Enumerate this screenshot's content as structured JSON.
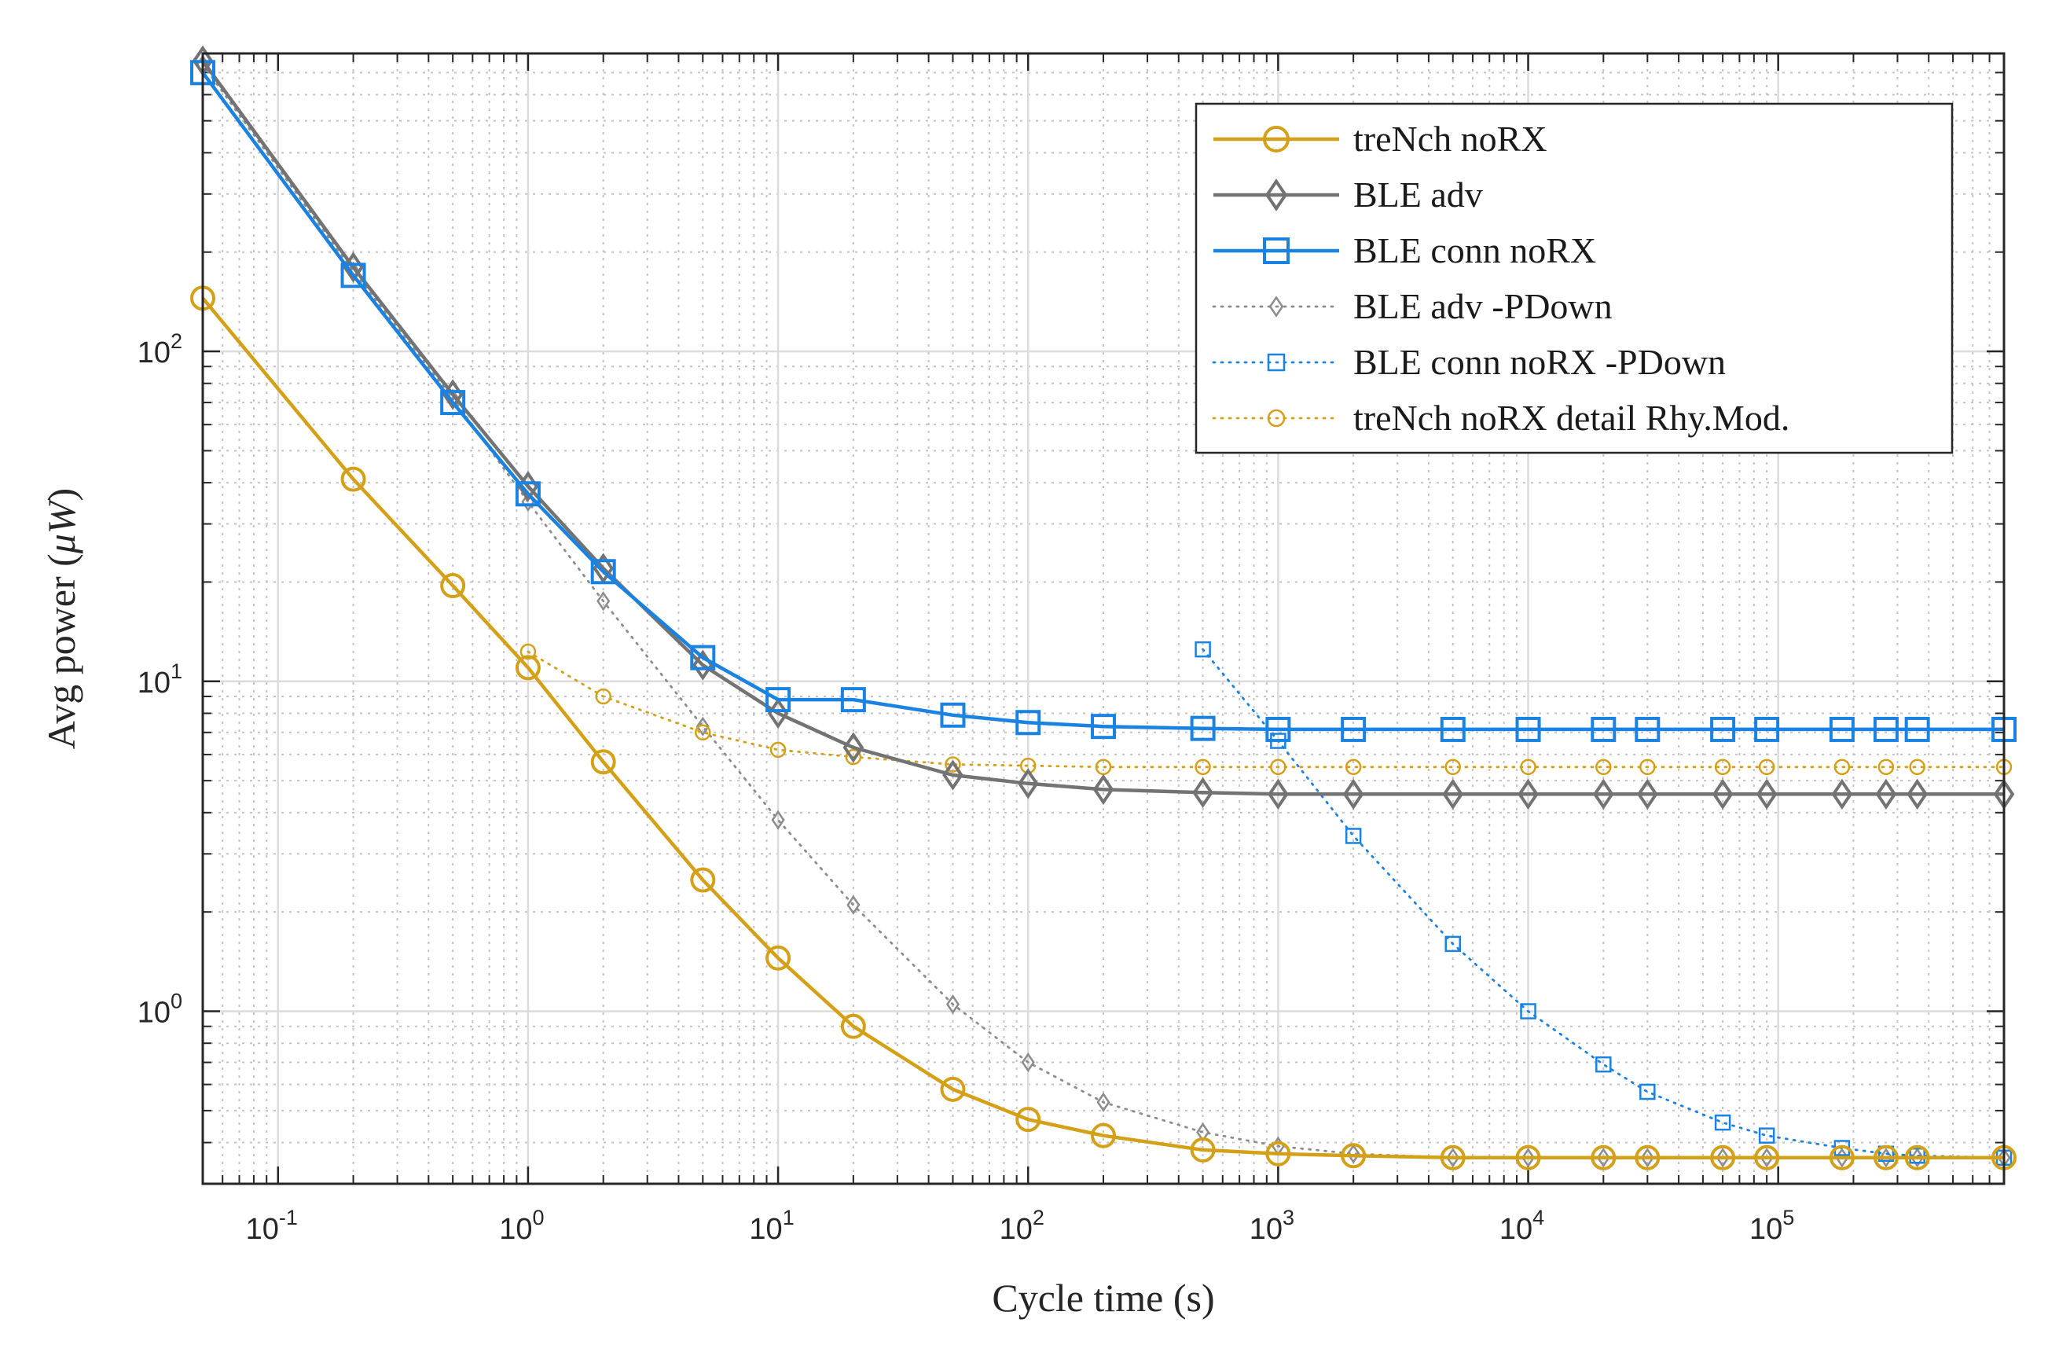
{
  "chart_data": {
    "type": "line",
    "title": "",
    "xlabel": "Cycle time (s)",
    "ylabel": "Avg power (",
    "ylabel_unit": "μW",
    "ylabel_close": ")",
    "xscale": "log",
    "yscale": "log",
    "xlim": [
      0.05,
      800000
    ],
    "ylim": [
      0.3,
      800
    ],
    "grid": true,
    "minor_grid": true,
    "legend_position": "top-right",
    "x_ticks": [
      {
        "base": "10",
        "exp": "-1",
        "value": 0.1
      },
      {
        "base": "10",
        "exp": "0",
        "value": 1
      },
      {
        "base": "10",
        "exp": "1",
        "value": 10
      },
      {
        "base": "10",
        "exp": "2",
        "value": 100
      },
      {
        "base": "10",
        "exp": "3",
        "value": 1000
      },
      {
        "base": "10",
        "exp": "4",
        "value": 10000
      },
      {
        "base": "10",
        "exp": "5",
        "value": 100000
      }
    ],
    "y_ticks": [
      {
        "base": "10",
        "exp": "0",
        "value": 1
      },
      {
        "base": "10",
        "exp": "1",
        "value": 10
      },
      {
        "base": "10",
        "exp": "2",
        "value": 100
      }
    ],
    "series": [
      {
        "name": "treNch noRX",
        "color": "#D4A017",
        "line": "solid",
        "marker": "circle",
        "x": [
          0.05,
          0.2,
          0.5,
          1,
          2,
          5,
          10,
          20,
          50,
          100,
          200,
          500,
          1000,
          2000,
          5000,
          10000,
          20000,
          30000,
          60000,
          90000,
          180000,
          270000,
          360000,
          800000
        ],
        "y": [
          145,
          41,
          19.5,
          11,
          5.7,
          2.5,
          1.45,
          0.9,
          0.58,
          0.47,
          0.42,
          0.38,
          0.37,
          0.365,
          0.36,
          0.36,
          0.36,
          0.36,
          0.36,
          0.36,
          0.36,
          0.36,
          0.36,
          0.36
        ]
      },
      {
        "name": "BLE adv",
        "color": "#737373",
        "line": "solid",
        "marker": "diamond",
        "x": [
          0.05,
          0.2,
          0.5,
          1,
          2,
          5,
          10,
          20,
          50,
          100,
          200,
          500,
          1000,
          2000,
          5000,
          10000,
          20000,
          30000,
          60000,
          90000,
          180000,
          270000,
          360000,
          800000
        ],
        "y": [
          760,
          180,
          74,
          39,
          22,
          11.2,
          8,
          6.3,
          5.2,
          4.9,
          4.7,
          4.6,
          4.55,
          4.55,
          4.55,
          4.55,
          4.55,
          4.55,
          4.55,
          4.55,
          4.55,
          4.55,
          4.55,
          4.55
        ]
      },
      {
        "name": "BLE conn noRX",
        "color": "#1A82E0",
        "line": "solid",
        "marker": "square",
        "x": [
          0.05,
          0.2,
          0.5,
          1,
          2,
          5,
          10,
          20,
          50,
          100,
          200,
          500,
          1000,
          2000,
          5000,
          10000,
          20000,
          30000,
          60000,
          90000,
          180000,
          270000,
          360000,
          800000
        ],
        "y": [
          700,
          170,
          70,
          37,
          21.5,
          11.8,
          8.8,
          8.8,
          7.9,
          7.5,
          7.3,
          7.2,
          7.15,
          7.15,
          7.15,
          7.15,
          7.15,
          7.15,
          7.15,
          7.15,
          7.15,
          7.15,
          7.15,
          7.15
        ]
      },
      {
        "name": "BLE adv -PDown",
        "color": "#8C8C8C",
        "line": "dotted",
        "marker": "diamond",
        "x": [
          0.05,
          0.2,
          0.5,
          1,
          2,
          5,
          10,
          20,
          50,
          100,
          200,
          500,
          1000,
          2000,
          5000,
          10000,
          20000,
          30000,
          60000,
          90000,
          180000,
          270000,
          360000,
          800000
        ],
        "y": [
          740,
          175,
          72,
          35,
          17.5,
          7.3,
          3.8,
          2.1,
          1.05,
          0.7,
          0.53,
          0.43,
          0.39,
          0.37,
          0.36,
          0.36,
          0.36,
          0.36,
          0.36,
          0.36,
          0.36,
          0.36,
          0.36,
          0.36
        ]
      },
      {
        "name": "BLE conn noRX -PDown",
        "color": "#1A82E0",
        "line": "dotted",
        "marker": "square",
        "x": [
          500,
          1000,
          2000,
          5000,
          10000,
          20000,
          30000,
          60000,
          90000,
          180000,
          270000,
          360000,
          800000
        ],
        "y": [
          12.5,
          6.6,
          3.4,
          1.6,
          1.0,
          0.69,
          0.57,
          0.46,
          0.42,
          0.385,
          0.37,
          0.365,
          0.36
        ]
      },
      {
        "name": "treNch noRX detail Rhy.Mod.",
        "color": "#D4A017",
        "line": "dotted",
        "marker": "circle",
        "x": [
          1,
          2,
          5,
          10,
          20,
          50,
          100,
          200,
          500,
          1000,
          2000,
          5000,
          10000,
          20000,
          30000,
          60000,
          90000,
          180000,
          270000,
          360000,
          800000
        ],
        "y": [
          12.3,
          9,
          7,
          6.2,
          5.9,
          5.6,
          5.55,
          5.5,
          5.5,
          5.5,
          5.5,
          5.5,
          5.5,
          5.5,
          5.5,
          5.5,
          5.5,
          5.5,
          5.5,
          5.5,
          5.5
        ]
      }
    ]
  }
}
